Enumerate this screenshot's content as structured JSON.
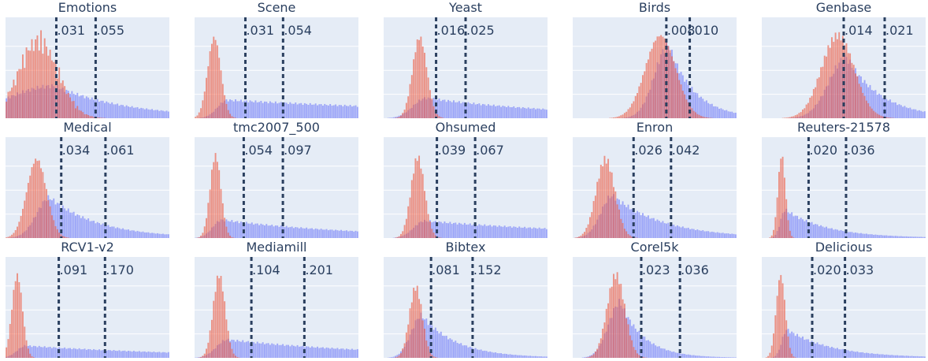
{
  "chart_data": {
    "type": "bar",
    "panels": [
      {
        "title": "Emotions",
        "thresholds": [
          ".031",
          ".055"
        ],
        "t1": 0.031,
        "t2": 0.055,
        "xmax": 0.1,
        "red": {
          "mu": 0.02,
          "sigma": 0.012,
          "amp": 0.85,
          "noise": true
        },
        "blue": {
          "peak": 0.03,
          "rise": 0.03,
          "decay": 0.045,
          "amp": 0.32
        }
      },
      {
        "title": "Scene",
        "thresholds": [
          ".031",
          ".054"
        ],
        "t1": 0.031,
        "t2": 0.054,
        "xmax": 0.1,
        "red": {
          "mu": 0.012,
          "sigma": 0.004,
          "amp": 0.8
        },
        "blue": {
          "peak": 0.02,
          "rise": 0.006,
          "decay": 0.2,
          "amp": 0.18
        }
      },
      {
        "title": "Yeast",
        "thresholds": [
          ".016",
          ".025"
        ],
        "t1": 0.016,
        "t2": 0.025,
        "xmax": 0.05,
        "red": {
          "mu": 0.011,
          "sigma": 0.0022,
          "amp": 0.8
        },
        "blue": {
          "peak": 0.013,
          "rise": 0.004,
          "decay": 0.045,
          "amp": 0.2
        }
      },
      {
        "title": "Birds",
        "thresholds": [
          ".008",
          ".010"
        ],
        "t1": 0.008,
        "t2": 0.01,
        "xmax": 0.014,
        "red": {
          "mu": 0.0075,
          "sigma": 0.0013,
          "amp": 0.82
        },
        "blue": {
          "peak": 0.0082,
          "rise": 0.0012,
          "decay": 0.0022,
          "amp": 0.72
        }
      },
      {
        "title": "Genbase",
        "thresholds": [
          ".014",
          ".021"
        ],
        "t1": 0.014,
        "t2": 0.021,
        "xmax": 0.028,
        "red": {
          "mu": 0.013,
          "sigma": 0.0028,
          "amp": 0.82
        },
        "blue": {
          "peak": 0.0145,
          "rise": 0.003,
          "decay": 0.006,
          "amp": 0.6
        }
      },
      {
        "title": "Medical",
        "thresholds": [
          ".034",
          ".061"
        ],
        "t1": 0.034,
        "t2": 0.061,
        "xmax": 0.1,
        "red": {
          "mu": 0.019,
          "sigma": 0.006,
          "amp": 0.78
        },
        "blue": {
          "peak": 0.027,
          "rise": 0.008,
          "decay": 0.03,
          "amp": 0.4
        }
      },
      {
        "title": "tmc2007_500",
        "thresholds": [
          ".054",
          ".097"
        ],
        "t1": 0.054,
        "t2": 0.097,
        "xmax": 0.18,
        "red": {
          "mu": 0.023,
          "sigma": 0.006,
          "amp": 0.82
        },
        "blue": {
          "peak": 0.03,
          "rise": 0.01,
          "decay": 0.15,
          "amp": 0.18
        }
      },
      {
        "title": "Ohsumed",
        "thresholds": [
          ".039",
          ".067"
        ],
        "t1": 0.039,
        "t2": 0.067,
        "xmax": 0.12,
        "red": {
          "mu": 0.025,
          "sigma": 0.005,
          "amp": 0.8
        },
        "blue": {
          "peak": 0.03,
          "rise": 0.008,
          "decay": 0.15,
          "amp": 0.17
        }
      },
      {
        "title": "Enron",
        "thresholds": [
          ".026",
          ".042"
        ],
        "t1": 0.026,
        "t2": 0.042,
        "xmax": 0.07,
        "red": {
          "mu": 0.014,
          "sigma": 0.004,
          "amp": 0.78
        },
        "blue": {
          "peak": 0.017,
          "rise": 0.005,
          "decay": 0.022,
          "amp": 0.42
        }
      },
      {
        "title": "Reuters-21578",
        "thresholds": [
          ".020",
          ".036"
        ],
        "t1": 0.02,
        "t2": 0.036,
        "xmax": 0.07,
        "red": {
          "mu": 0.0085,
          "sigma": 0.0016,
          "amp": 0.82
        },
        "blue": {
          "peak": 0.01,
          "rise": 0.002,
          "decay": 0.018,
          "amp": 0.28
        }
      },
      {
        "title": "RCV1-v2",
        "thresholds": [
          ".091",
          ".170"
        ],
        "t1": 0.091,
        "t2": 0.17,
        "xmax": 0.28,
        "red": {
          "mu": 0.02,
          "sigma": 0.009,
          "amp": 0.82
        },
        "blue": {
          "peak": 0.035,
          "rise": 0.015,
          "decay": 0.3,
          "amp": 0.12
        }
      },
      {
        "title": "Mediamill",
        "thresholds": [
          ".104",
          ".201"
        ],
        "t1": 0.104,
        "t2": 0.201,
        "xmax": 0.3,
        "red": {
          "mu": 0.045,
          "sigma": 0.011,
          "amp": 0.82
        },
        "blue": {
          "peak": 0.06,
          "rise": 0.02,
          "decay": 0.3,
          "amp": 0.18
        }
      },
      {
        "title": "Bibtex",
        "thresholds": [
          ".081",
          ".152"
        ],
        "t1": 0.081,
        "t2": 0.152,
        "xmax": 0.28,
        "red": {
          "mu": 0.055,
          "sigma": 0.011,
          "amp": 0.7
        },
        "blue": {
          "peak": 0.065,
          "rise": 0.018,
          "decay": 0.06,
          "amp": 0.42
        }
      },
      {
        "title": "Corel5k",
        "thresholds": [
          ".023",
          ".036"
        ],
        "t1": 0.023,
        "t2": 0.036,
        "xmax": 0.055,
        "red": {
          "mu": 0.0145,
          "sigma": 0.003,
          "amp": 0.82
        },
        "blue": {
          "peak": 0.016,
          "rise": 0.004,
          "decay": 0.008,
          "amp": 0.55
        }
      },
      {
        "title": "Delicious",
        "thresholds": [
          ".020",
          ".033"
        ],
        "t1": 0.02,
        "t2": 0.033,
        "xmax": 0.065,
        "red": {
          "mu": 0.0075,
          "sigma": 0.0018,
          "amp": 0.82
        },
        "blue": {
          "peak": 0.01,
          "rise": 0.002,
          "decay": 0.018,
          "amp": 0.28
        }
      }
    ],
    "colors": {
      "red": "#ef553b",
      "blue": "#636efa",
      "plot_bg": "#e5ecf6",
      "grid": "#ffffff",
      "threshold_line": "#2a3f5f",
      "text": "#2a3f5f"
    }
  }
}
